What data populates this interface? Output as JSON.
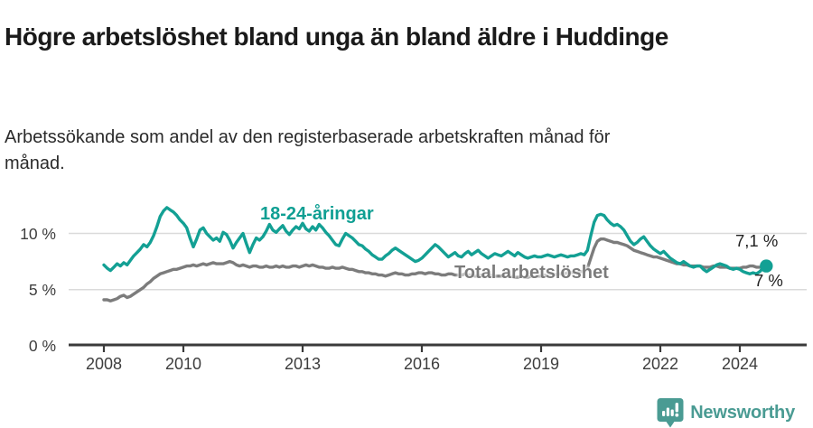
{
  "header": {
    "title": "Högre arbetslöshet bland unga än bland äldre i Huddinge",
    "subtitle": "Arbetssökande som andel av den registerbaserade arbetskraften månad för månad."
  },
  "footer": {
    "brand": "Newsworthy",
    "brand_color": "#4a9b93",
    "logo_icon": "newsworthy-badge-bar-chart-exclamation"
  },
  "chart_data": {
    "type": "line",
    "title": "Högre arbetslöshet bland unga än bland äldre i Huddinge",
    "subtitle": "Arbetssökande som andel av den registerbaserade arbetskraften månad för månad.",
    "frequency": "monthly",
    "x_start": "2008-01",
    "x_end": "2024-09",
    "x_axis": {
      "ticks": [
        2008,
        2010,
        2013,
        2016,
        2019,
        2022,
        2024
      ]
    },
    "y_axis": {
      "ticks": [
        0,
        5,
        10
      ],
      "tick_labels": [
        "0 %",
        "5 %",
        "10 %"
      ],
      "ylim": [
        0,
        12.6
      ],
      "grid_values": [
        5,
        10
      ]
    },
    "grid": true,
    "legend_position": "inline-labels",
    "series": [
      {
        "name": "Total arbetslöshet",
        "color": "#7c7c7c",
        "end_label": "7 %",
        "end_value": 7.0,
        "values": [
          4.1,
          4.1,
          4.0,
          4.1,
          4.2,
          4.4,
          4.5,
          4.3,
          4.4,
          4.6,
          4.8,
          5.0,
          5.2,
          5.5,
          5.7,
          6.0,
          6.2,
          6.4,
          6.5,
          6.6,
          6.7,
          6.8,
          6.8,
          6.9,
          7.0,
          7.1,
          7.1,
          7.2,
          7.1,
          7.2,
          7.3,
          7.2,
          7.3,
          7.4,
          7.3,
          7.3,
          7.3,
          7.4,
          7.5,
          7.4,
          7.2,
          7.1,
          7.2,
          7.1,
          7.0,
          7.1,
          7.1,
          7.0,
          7.0,
          7.1,
          7.0,
          7.0,
          7.1,
          7.0,
          7.1,
          7.0,
          7.0,
          7.1,
          7.1,
          7.0,
          7.1,
          7.2,
          7.1,
          7.2,
          7.1,
          7.0,
          7.0,
          6.9,
          6.9,
          7.0,
          6.9,
          6.9,
          7.0,
          6.9,
          6.8,
          6.8,
          6.7,
          6.6,
          6.6,
          6.5,
          6.5,
          6.4,
          6.4,
          6.3,
          6.3,
          6.2,
          6.3,
          6.4,
          6.5,
          6.4,
          6.4,
          6.3,
          6.3,
          6.4,
          6.4,
          6.5,
          6.5,
          6.4,
          6.5,
          6.5,
          6.4,
          6.4,
          6.3,
          6.3,
          6.4,
          6.4,
          6.3,
          6.3,
          6.3,
          6.4,
          6.3,
          6.3,
          6.2,
          6.2,
          6.3,
          6.2,
          6.2,
          6.3,
          6.2,
          6.2,
          6.2,
          6.3,
          6.2,
          6.2,
          6.1,
          6.1,
          6.2,
          6.1,
          6.1,
          6.2,
          6.2,
          6.2,
          6.2,
          6.3,
          6.2,
          6.3,
          6.3,
          6.4,
          6.4,
          6.4,
          6.5,
          6.5,
          6.5,
          6.6,
          6.6,
          6.6,
          6.9,
          7.8,
          8.7,
          9.3,
          9.5,
          9.5,
          9.4,
          9.3,
          9.2,
          9.2,
          9.1,
          9.0,
          8.9,
          8.7,
          8.5,
          8.4,
          8.3,
          8.2,
          8.1,
          8.0,
          7.9,
          7.9,
          7.8,
          7.7,
          7.6,
          7.5,
          7.4,
          7.3,
          7.3,
          7.2,
          7.2,
          7.1,
          7.1,
          7.1,
          7.1,
          7.0,
          7.0,
          7.0,
          7.1,
          7.1,
          7.0,
          7.0,
          7.0,
          6.9,
          6.9,
          6.9,
          6.9,
          7.0,
          7.0,
          7.1,
          7.1,
          7.0,
          7.0,
          7.0,
          7.0
        ]
      },
      {
        "name": "18-24-åringar",
        "color": "#13a094",
        "end_label": "7,1 %",
        "end_value": 7.1,
        "values": [
          7.2,
          6.9,
          6.7,
          7.0,
          7.3,
          7.1,
          7.4,
          7.2,
          7.6,
          8.0,
          8.3,
          8.6,
          9.0,
          8.8,
          9.2,
          9.8,
          10.6,
          11.5,
          12.0,
          12.3,
          12.1,
          11.9,
          11.6,
          11.2,
          10.9,
          10.5,
          9.6,
          8.8,
          9.5,
          10.3,
          10.5,
          10.0,
          9.7,
          9.4,
          9.6,
          9.3,
          10.1,
          9.9,
          9.4,
          8.7,
          9.2,
          9.6,
          10.0,
          9.1,
          8.3,
          9.0,
          9.6,
          9.4,
          9.7,
          10.2,
          10.8,
          10.3,
          10.1,
          10.4,
          10.7,
          10.2,
          9.9,
          10.3,
          10.6,
          10.4,
          10.9,
          10.4,
          10.2,
          10.6,
          10.3,
          10.8,
          10.5,
          10.1,
          9.8,
          9.4,
          9.0,
          8.9,
          9.5,
          10.0,
          9.8,
          9.6,
          9.3,
          9.0,
          8.9,
          8.6,
          8.4,
          8.1,
          7.9,
          7.7,
          7.7,
          8.0,
          8.2,
          8.5,
          8.7,
          8.5,
          8.3,
          8.1,
          7.9,
          7.7,
          7.5,
          7.6,
          7.8,
          8.1,
          8.4,
          8.7,
          9.0,
          8.8,
          8.5,
          8.2,
          7.9,
          8.1,
          8.3,
          8.0,
          7.9,
          8.2,
          8.4,
          8.1,
          8.3,
          8.5,
          8.2,
          8.0,
          7.8,
          8.0,
          8.2,
          8.1,
          8.0,
          8.2,
          8.4,
          8.2,
          8.0,
          8.3,
          8.1,
          7.9,
          7.8,
          7.9,
          8.0,
          7.9,
          7.9,
          8.0,
          8.1,
          8.0,
          7.9,
          8.0,
          8.1,
          8.0,
          7.9,
          8.0,
          8.0,
          8.1,
          8.2,
          8.1,
          8.5,
          9.8,
          11.0,
          11.6,
          11.7,
          11.6,
          11.2,
          10.9,
          10.7,
          10.8,
          10.6,
          10.3,
          9.8,
          9.3,
          9.0,
          9.2,
          9.5,
          9.7,
          9.3,
          8.9,
          8.6,
          8.4,
          8.2,
          8.4,
          8.1,
          7.8,
          7.6,
          7.4,
          7.3,
          7.5,
          7.3,
          7.1,
          7.0,
          7.1,
          7.1,
          6.8,
          6.6,
          6.8,
          7.0,
          7.2,
          7.3,
          7.2,
          7.1,
          6.9,
          6.8,
          6.9,
          6.8,
          6.6,
          6.5,
          6.4,
          6.5,
          6.4,
          6.6,
          6.9,
          7.1
        ]
      }
    ]
  }
}
